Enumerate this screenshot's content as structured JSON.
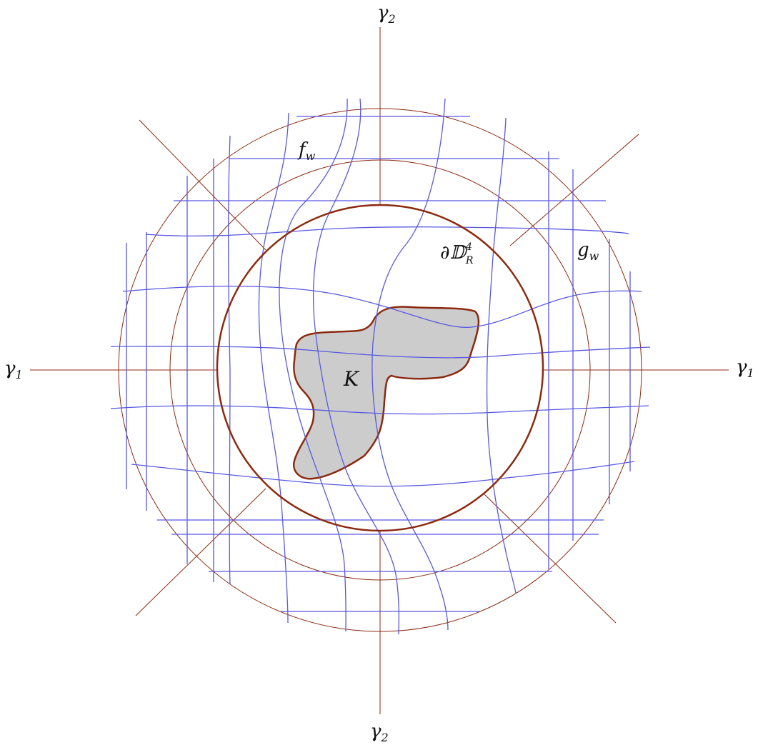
{
  "labels": {
    "gamma2_top": "γ",
    "gamma2_top_sub": "2",
    "gamma2_bottom": "γ",
    "gamma2_bottom_sub": "2",
    "gamma1_left": "γ",
    "gamma1_left_sub": "1",
    "gamma1_right": "γ",
    "gamma1_right_sub": "1",
    "f_w": "f",
    "f_w_sub": "w",
    "g_w": "g",
    "g_w_sub": "w",
    "boundary_main": "∂𝔻",
    "boundary_sup": "4",
    "boundary_sub": "R",
    "compact_set": "K"
  },
  "colors": {
    "axes_and_circles": "#8B2A10",
    "grid_curves": "#5858E0",
    "compact_fill": "#CCCCCC"
  }
}
